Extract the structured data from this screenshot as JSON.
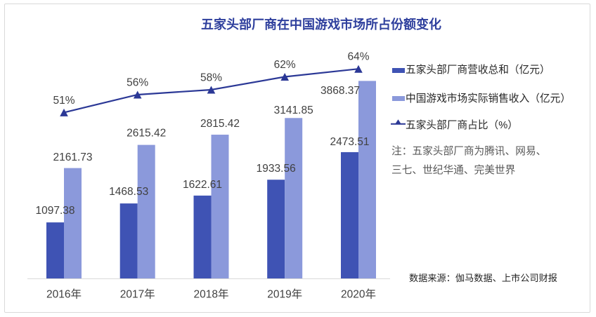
{
  "title": "五家头部厂商在中国游戏市场所占份额变化",
  "chart_data": {
    "type": "bar+line combo",
    "title": "五家头部厂商在中国游戏市场所占份额变化",
    "categories": [
      "2016年",
      "2017年",
      "2018年",
      "2019年",
      "2020年"
    ],
    "series": [
      {
        "name": "五家头部厂商营收总和（亿元）",
        "type": "bar",
        "values": [
          1097.38,
          1468.53,
          1622.61,
          1933.56,
          2473.51
        ]
      },
      {
        "name": "中国游戏市场实际销售收入（亿元）",
        "type": "bar",
        "values": [
          2161.73,
          2615.42,
          2815.42,
          3141.85,
          3868.37
        ]
      },
      {
        "name": "五家头部厂商占比（%）",
        "type": "line",
        "values": [
          51,
          56,
          58,
          62,
          64
        ],
        "value_labels": [
          "51%",
          "56%",
          "58%",
          "62%",
          "64%"
        ]
      }
    ],
    "bar_value_labels": {
      "series1": [
        "1097.38",
        "1468.53",
        "1622.61",
        "1933.56",
        "2473.51"
      ],
      "series2": [
        "2161.73",
        "2615.42",
        "2815.42",
        "3141.85",
        "3868.37"
      ]
    },
    "xlabel": "",
    "ylabel": "",
    "grid": false,
    "legend_position": "right",
    "colors": {
      "bar_series1": "#3F53B4",
      "bar_series2": "#8B99DB",
      "line_series": "#2B3896",
      "title": "#2E3F9D",
      "axis_line": "#D9D9D9",
      "label_text": "#404040",
      "legend_text": "#262626",
      "note_text": "#595959",
      "source_text": "#262626"
    }
  },
  "legend": {
    "items": [
      {
        "label": "五家头部厂商营收总和（亿元）",
        "marker": "square",
        "color": "#3F53B4"
      },
      {
        "label": "中国游戏市场实际销售收入（亿元）",
        "marker": "square",
        "color": "#8B99DB"
      },
      {
        "label": "五家头部厂商占比（%）",
        "marker": "line-triangle",
        "color": "#2B3896"
      }
    ]
  },
  "note": {
    "line1": "注：五家头部厂商为腾讯、网易、",
    "line2": "三七、世纪华通、完美世界"
  },
  "source": "数据来源：伽马数据、上市公司财报"
}
